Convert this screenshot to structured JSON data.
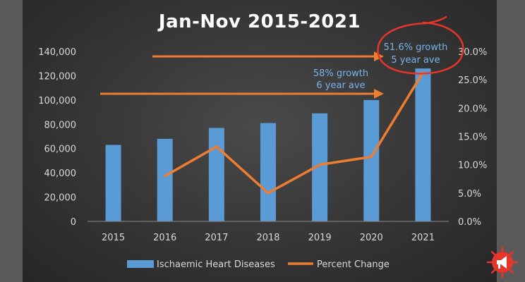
{
  "chart_data": {
    "type": "bar",
    "title": "Jan-Nov 2015-2021",
    "categories": [
      "2015",
      "2016",
      "2017",
      "2018",
      "2019",
      "2020",
      "2021"
    ],
    "series": [
      {
        "name": "Ischaemic Heart Diseases",
        "type": "bar",
        "axis": "left",
        "values": [
          63000,
          68000,
          77000,
          81000,
          89000,
          100000,
          126000
        ],
        "color": "#5b9bd5"
      },
      {
        "name": "Percent Change",
        "type": "line",
        "axis": "right",
        "values": [
          null,
          8.0,
          13.2,
          5.0,
          10.0,
          11.4,
          26.3
        ],
        "color": "#ed7d31"
      }
    ],
    "y_left": {
      "lim": [
        0,
        140000
      ],
      "ticks": [
        "0",
        "20,000",
        "40,000",
        "60,000",
        "80,000",
        "100,000",
        "120,000",
        "140,000"
      ]
    },
    "y_right": {
      "lim": [
        0,
        30
      ],
      "ticks": [
        "0.0%",
        "5.0%",
        "10.0%",
        "15.0%",
        "20.0%",
        "25.0%",
        "30.0%"
      ]
    },
    "annotations": {
      "six_year": {
        "line1": "58% growth",
        "line2": "6 year ave"
      },
      "five_year": {
        "line1": "51.6% growth",
        "line2": "5 year ave"
      }
    },
    "legend_position": "bottom",
    "grid": false
  },
  "colors": {
    "arrow": "#ed7d31",
    "circle": "#e8352b",
    "annotation_text": "#7ab4ec",
    "logo": "#e8352b"
  },
  "logo_icon": "megaphone-virus-icon"
}
